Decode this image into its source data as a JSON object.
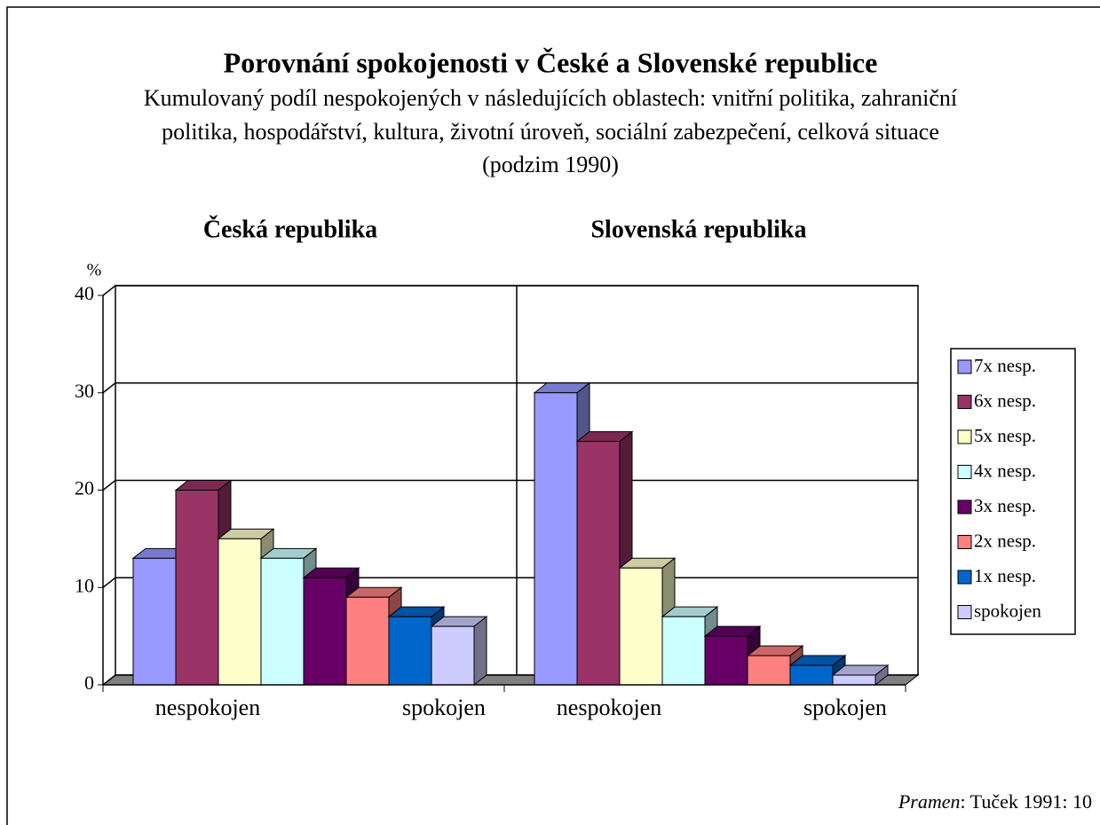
{
  "chart_data": {
    "type": "bar3d",
    "title": "Porovnání spokojenosti v České a Slovenské republice",
    "subtitle": [
      "Kumulovaný podíl nespokojených v následujících oblastech: vnitřní politika, zahraniční",
      "politika, hospodářství, kultura, životní úroveň, sociální zabezpečení, celková situace",
      "(podzim 1990)"
    ],
    "categories": [
      "Česká republika",
      "Slovenská republika"
    ],
    "group_axis_labels": [
      [
        "nespokojen",
        "spokojen"
      ],
      [
        "nespokojen",
        "spokojen"
      ]
    ],
    "y_unit": "%",
    "ylim": [
      0,
      40
    ],
    "yticks": [
      0,
      10,
      20,
      30,
      40
    ],
    "grid": true,
    "legend": "right",
    "series": [
      {
        "name": "7x nesp.",
        "color": "#9999ff",
        "values": [
          13,
          30
        ]
      },
      {
        "name": "6x nesp.",
        "color": "#993366",
        "values": [
          20,
          25
        ]
      },
      {
        "name": "5x nesp.",
        "color": "#ffffcc",
        "values": [
          15,
          12
        ]
      },
      {
        "name": "4x nesp.",
        "color": "#ccffff",
        "values": [
          13,
          7
        ]
      },
      {
        "name": "3x nesp.",
        "color": "#660066",
        "values": [
          11,
          5
        ]
      },
      {
        "name": "2x nesp.",
        "color": "#ff8080",
        "values": [
          9,
          3
        ]
      },
      {
        "name": "1x nesp.",
        "color": "#0066cc",
        "values": [
          7,
          2
        ]
      },
      {
        "name": "spokojen",
        "color": "#ccccff",
        "values": [
          6,
          1
        ]
      }
    ],
    "source_label": "Pramen",
    "source_text": ":  Tuček 1991: 10"
  }
}
